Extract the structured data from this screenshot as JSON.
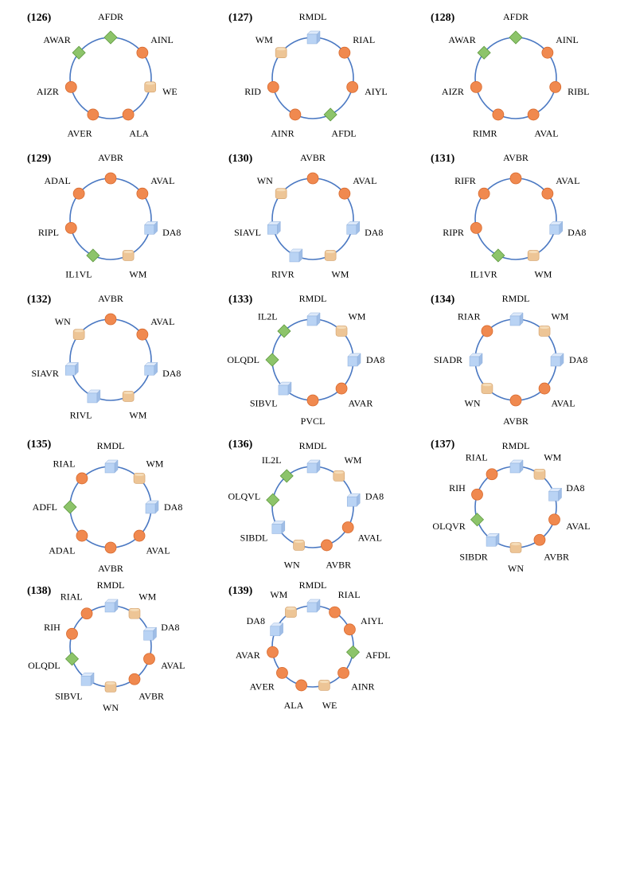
{
  "colors": {
    "ring": "#4a78c2",
    "circle": "#f0894f",
    "circle_edge": "#d86a2e",
    "cube_front": "#b9d3f4",
    "cube_top": "#dde9fa",
    "cube_side": "#9fbde6",
    "cylinder": "#edc596",
    "cylinder_top": "#f5dcb8",
    "cylinder_edge": "#d2a06b",
    "diamond": "#8dc46a",
    "diamond_edge": "#5f9a40"
  },
  "motifs": [
    {
      "label": "(126)",
      "nodes": [
        {
          "name": "AFDR",
          "shape": "diamond"
        },
        {
          "name": "AINL",
          "shape": "circle"
        },
        {
          "name": "WE",
          "shape": "cylinder"
        },
        {
          "name": "ALA",
          "shape": "circle"
        },
        {
          "name": "AVER",
          "shape": "circle"
        },
        {
          "name": "AIZR",
          "shape": "circle"
        },
        {
          "name": "AWAR",
          "shape": "diamond"
        }
      ]
    },
    {
      "label": "(127)",
      "nodes": [
        {
          "name": "RMDL",
          "shape": "cube"
        },
        {
          "name": "RIAL",
          "shape": "circle"
        },
        {
          "name": "AIYL",
          "shape": "circle"
        },
        {
          "name": "AFDL",
          "shape": "diamond"
        },
        {
          "name": "AINR",
          "shape": "circle"
        },
        {
          "name": "RID",
          "shape": "circle"
        },
        {
          "name": "WM",
          "shape": "cylinder"
        }
      ]
    },
    {
      "label": "(128)",
      "nodes": [
        {
          "name": "AFDR",
          "shape": "diamond"
        },
        {
          "name": "AINL",
          "shape": "circle"
        },
        {
          "name": "RIBL",
          "shape": "circle"
        },
        {
          "name": "AVAL",
          "shape": "circle"
        },
        {
          "name": "RIMR",
          "shape": "circle"
        },
        {
          "name": "AIZR",
          "shape": "circle"
        },
        {
          "name": "AWAR",
          "shape": "diamond"
        }
      ]
    },
    {
      "label": "(129)",
      "nodes": [
        {
          "name": "AVBR",
          "shape": "circle"
        },
        {
          "name": "AVAL",
          "shape": "circle"
        },
        {
          "name": "DA8",
          "shape": "cube"
        },
        {
          "name": "WM",
          "shape": "cylinder"
        },
        {
          "name": "IL1VL",
          "shape": "diamond"
        },
        {
          "name": "RIPL",
          "shape": "circle"
        },
        {
          "name": "ADAL",
          "shape": "circle"
        }
      ]
    },
    {
      "label": "(130)",
      "nodes": [
        {
          "name": "AVBR",
          "shape": "circle"
        },
        {
          "name": "AVAL",
          "shape": "circle"
        },
        {
          "name": "DA8",
          "shape": "cube"
        },
        {
          "name": "WM",
          "shape": "cylinder"
        },
        {
          "name": "RIVR",
          "shape": "cube"
        },
        {
          "name": "SIAVL",
          "shape": "cube"
        },
        {
          "name": "WN",
          "shape": "cylinder"
        }
      ]
    },
    {
      "label": "(131)",
      "nodes": [
        {
          "name": "AVBR",
          "shape": "circle"
        },
        {
          "name": "AVAL",
          "shape": "circle"
        },
        {
          "name": "DA8",
          "shape": "cube"
        },
        {
          "name": "WM",
          "shape": "cylinder"
        },
        {
          "name": "IL1VR",
          "shape": "diamond"
        },
        {
          "name": "RIPR",
          "shape": "circle"
        },
        {
          "name": "RIFR",
          "shape": "circle"
        }
      ]
    },
    {
      "label": "(132)",
      "nodes": [
        {
          "name": "AVBR",
          "shape": "circle"
        },
        {
          "name": "AVAL",
          "shape": "circle"
        },
        {
          "name": "DA8",
          "shape": "cube"
        },
        {
          "name": "WM",
          "shape": "cylinder"
        },
        {
          "name": "RIVL",
          "shape": "cube"
        },
        {
          "name": "SIAVR",
          "shape": "cube"
        },
        {
          "name": "WN",
          "shape": "cylinder"
        }
      ]
    },
    {
      "label": "(133)",
      "nodes": [
        {
          "name": "RMDL",
          "shape": "cube"
        },
        {
          "name": "WM",
          "shape": "cylinder"
        },
        {
          "name": "DA8",
          "shape": "cube"
        },
        {
          "name": "AVAR",
          "shape": "circle"
        },
        {
          "name": "PVCL",
          "shape": "circle"
        },
        {
          "name": "SIBVL",
          "shape": "cube"
        },
        {
          "name": "OLQDL",
          "shape": "diamond"
        },
        {
          "name": "IL2L",
          "shape": "diamond"
        }
      ]
    },
    {
      "label": "(134)",
      "nodes": [
        {
          "name": "RMDL",
          "shape": "cube"
        },
        {
          "name": "WM",
          "shape": "cylinder"
        },
        {
          "name": "DA8",
          "shape": "cube"
        },
        {
          "name": "AVAL",
          "shape": "circle"
        },
        {
          "name": "AVBR",
          "shape": "circle"
        },
        {
          "name": "WN",
          "shape": "cylinder"
        },
        {
          "name": "SIADR",
          "shape": "cube"
        },
        {
          "name": "RIAR",
          "shape": "circle"
        }
      ]
    },
    {
      "label": "(135)",
      "nodes": [
        {
          "name": "RMDL",
          "shape": "cube"
        },
        {
          "name": "WM",
          "shape": "cylinder"
        },
        {
          "name": "DA8",
          "shape": "cube"
        },
        {
          "name": "AVAL",
          "shape": "circle"
        },
        {
          "name": "AVBR",
          "shape": "circle"
        },
        {
          "name": "ADAL",
          "shape": "circle"
        },
        {
          "name": "ADFL",
          "shape": "diamond"
        },
        {
          "name": "RIAL",
          "shape": "circle"
        }
      ]
    },
    {
      "label": "(136)",
      "nodes": [
        {
          "name": "RMDL",
          "shape": "cube"
        },
        {
          "name": "WM",
          "shape": "cylinder"
        },
        {
          "name": "DA8",
          "shape": "cube"
        },
        {
          "name": "AVAL",
          "shape": "circle"
        },
        {
          "name": "AVBR",
          "shape": "circle"
        },
        {
          "name": "WN",
          "shape": "cylinder"
        },
        {
          "name": "SIBDL",
          "shape": "cube"
        },
        {
          "name": "OLQVL",
          "shape": "diamond"
        },
        {
          "name": "IL2L",
          "shape": "diamond"
        }
      ]
    },
    {
      "label": "(137)",
      "nodes": [
        {
          "name": "RMDL",
          "shape": "cube"
        },
        {
          "name": "WM",
          "shape": "cylinder"
        },
        {
          "name": "DA8",
          "shape": "cube"
        },
        {
          "name": "AVAL",
          "shape": "circle"
        },
        {
          "name": "AVBR",
          "shape": "circle"
        },
        {
          "name": "WN",
          "shape": "cylinder"
        },
        {
          "name": "SIBDR",
          "shape": "cube"
        },
        {
          "name": "OLQVR",
          "shape": "diamond"
        },
        {
          "name": "RIH",
          "shape": "circle"
        },
        {
          "name": "RIAL",
          "shape": "circle"
        }
      ]
    },
    {
      "label": "(138)",
      "nodes": [
        {
          "name": "RMDL",
          "shape": "cube"
        },
        {
          "name": "WM",
          "shape": "cylinder"
        },
        {
          "name": "DA8",
          "shape": "cube"
        },
        {
          "name": "AVAL",
          "shape": "circle"
        },
        {
          "name": "AVBR",
          "shape": "circle"
        },
        {
          "name": "WN",
          "shape": "cylinder"
        },
        {
          "name": "SIBVL",
          "shape": "cube"
        },
        {
          "name": "OLQDL",
          "shape": "diamond"
        },
        {
          "name": "RIH",
          "shape": "circle"
        },
        {
          "name": "RIAL",
          "shape": "circle"
        }
      ]
    },
    {
      "label": "(139)",
      "nodes": [
        {
          "name": "RMDL",
          "shape": "cube"
        },
        {
          "name": "RIAL",
          "shape": "circle"
        },
        {
          "name": "AIYL",
          "shape": "circle"
        },
        {
          "name": "AFDL",
          "shape": "diamond"
        },
        {
          "name": "AINR",
          "shape": "circle"
        },
        {
          "name": "WE",
          "shape": "cylinder"
        },
        {
          "name": "ALA",
          "shape": "circle"
        },
        {
          "name": "AVER",
          "shape": "circle"
        },
        {
          "name": "AVAR",
          "shape": "circle"
        },
        {
          "name": "DA8",
          "shape": "cube"
        },
        {
          "name": "WM",
          "shape": "cylinder"
        }
      ]
    }
  ]
}
